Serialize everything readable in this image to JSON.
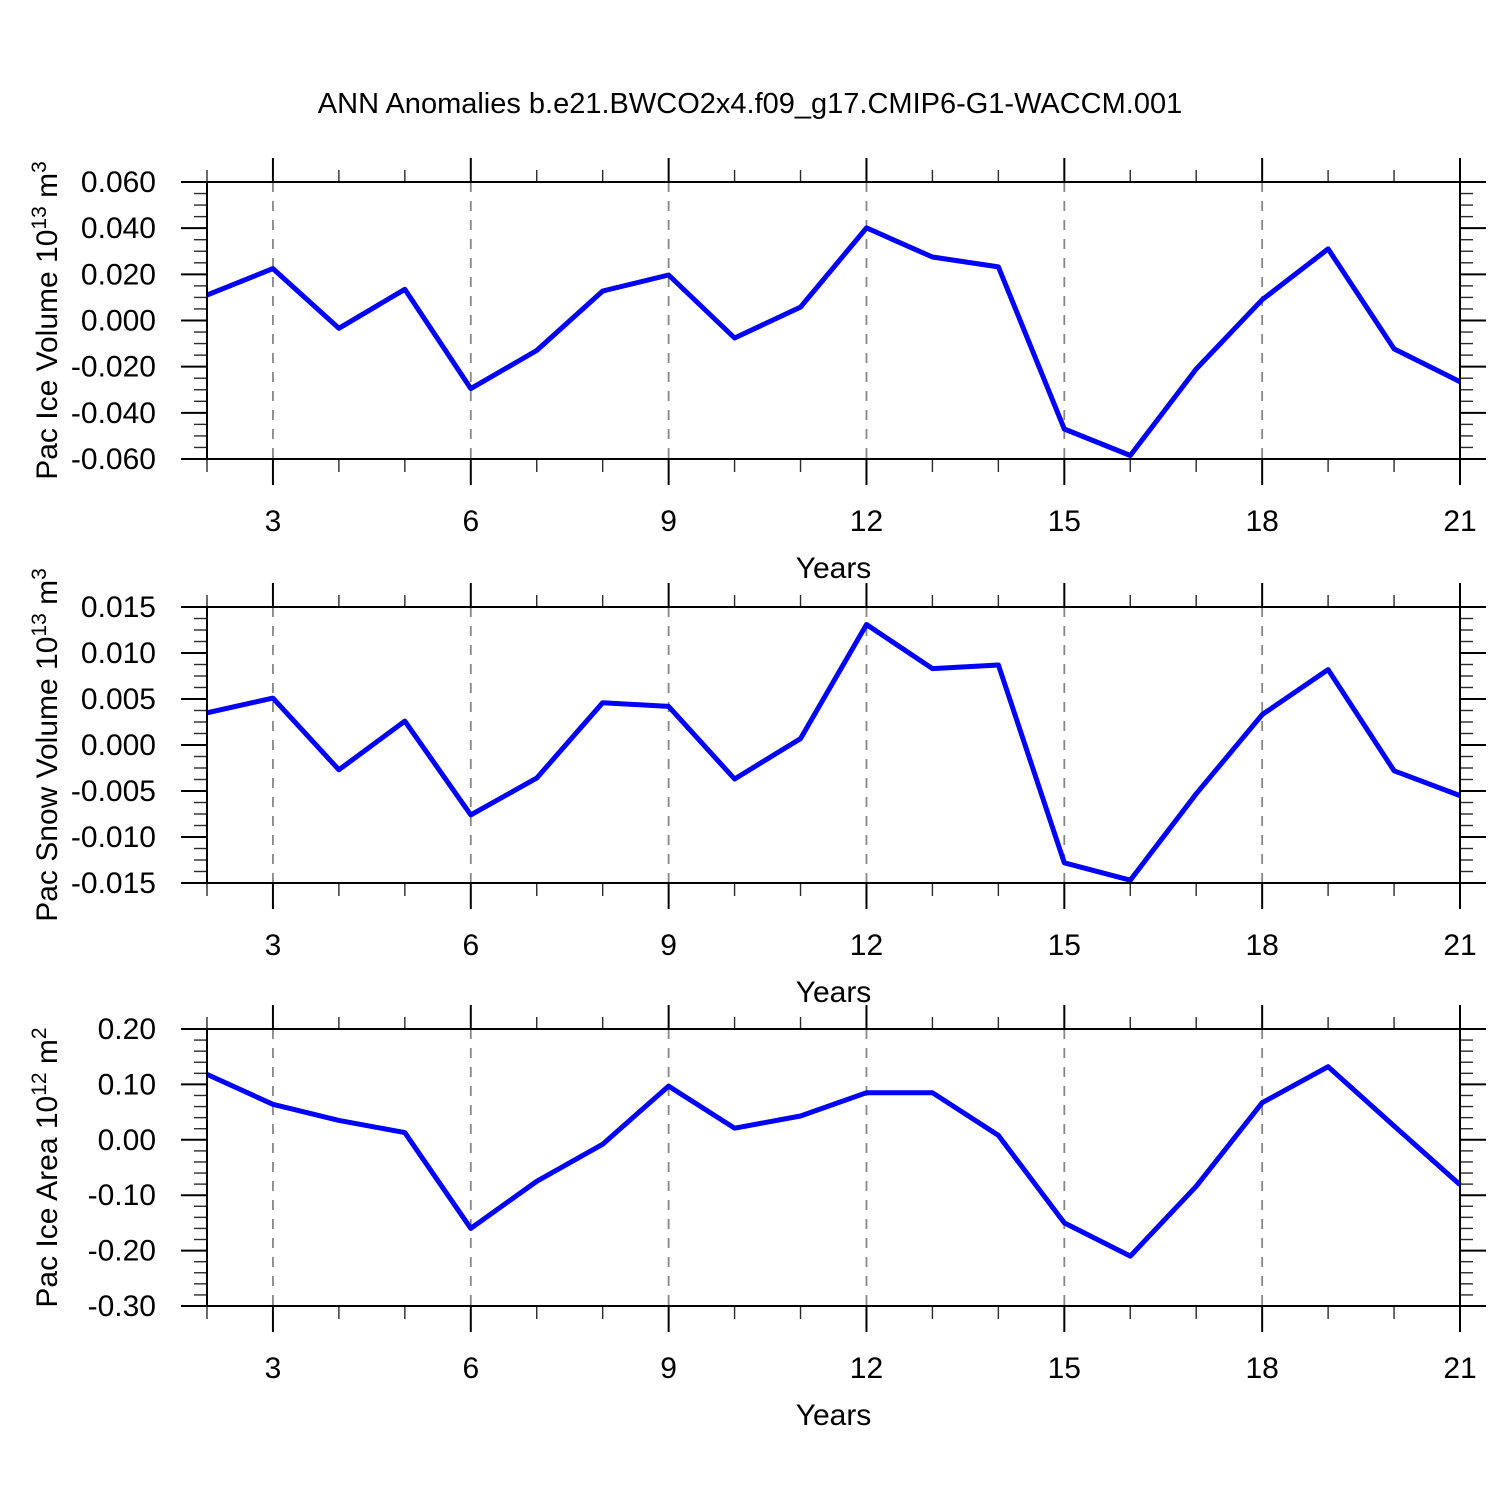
{
  "title": "ANN Anomalies b.e21.BWCO2x4.f09_g17.CMIP6-G1-WACCM.001",
  "line_color": "#0000ff",
  "chart_data": [
    {
      "type": "line",
      "panel": "top",
      "ylabel": "Pac Ice Volume 10^13 m^3",
      "ylabel_rich": [
        {
          "t": "Pac Ice Volume 10"
        },
        {
          "t": "13",
          "sup": true
        },
        {
          "t": " m"
        },
        {
          "t": "3",
          "sup": true
        }
      ],
      "xlabel": "Years",
      "x": [
        2,
        3,
        4,
        5,
        6,
        7,
        8,
        9,
        10,
        11,
        12,
        13,
        14,
        15,
        16,
        17,
        18,
        19,
        20,
        21
      ],
      "values": [
        0.011,
        0.0225,
        -0.0034,
        0.0135,
        -0.0295,
        -0.013,
        0.0128,
        0.0197,
        -0.0076,
        0.0058,
        0.0401,
        0.0275,
        0.0232,
        -0.047,
        -0.0585,
        -0.021,
        0.009,
        0.031,
        -0.0123,
        -0.0265
      ],
      "xlim": [
        2,
        21
      ],
      "ylim": [
        -0.06,
        0.06
      ],
      "ytick_values": [
        0.06,
        0.04,
        0.02,
        0.0,
        -0.02,
        -0.04,
        -0.06
      ],
      "ytick_labels": [
        "0.060",
        "0.040",
        "0.020",
        "0.000",
        "-0.020",
        "-0.040",
        "-0.060"
      ],
      "y_minor_step": 0.005,
      "xtick_values": [
        3,
        6,
        9,
        12,
        15,
        18,
        21
      ],
      "xtick_labels": [
        "3",
        "6",
        "9",
        "12",
        "15",
        "18",
        "21"
      ],
      "x_minor_step": 1,
      "grid_x": [
        3,
        6,
        9,
        12,
        15,
        18
      ],
      "grid": "vertical-dashed",
      "legend": "none"
    },
    {
      "type": "line",
      "panel": "middle",
      "ylabel": "Pac Snow Volume 10^13 m^3",
      "ylabel_rich": [
        {
          "t": "Pac Snow Volume 10"
        },
        {
          "t": "13",
          "sup": true
        },
        {
          "t": " m"
        },
        {
          "t": "3",
          "sup": true
        }
      ],
      "xlabel": "Years",
      "x": [
        2,
        3,
        4,
        5,
        6,
        7,
        8,
        9,
        10,
        11,
        12,
        13,
        14,
        15,
        16,
        17,
        18,
        19,
        20,
        21
      ],
      "values": [
        0.0035,
        0.0051,
        -0.0027,
        0.0026,
        -0.0076,
        -0.0036,
        0.0046,
        0.0042,
        -0.0037,
        0.0007,
        0.0131,
        0.0083,
        0.0087,
        -0.0128,
        -0.0147,
        -0.0053,
        0.0033,
        0.0082,
        -0.0028,
        -0.0055
      ],
      "xlim": [
        2,
        21
      ],
      "ylim": [
        -0.015,
        0.015
      ],
      "ytick_values": [
        0.015,
        0.01,
        0.005,
        0.0,
        -0.005,
        -0.01,
        -0.015
      ],
      "ytick_labels": [
        "0.015",
        "0.010",
        "0.005",
        "0.000",
        "-0.005",
        "-0.010",
        "-0.015"
      ],
      "y_minor_step": 0.00125,
      "xtick_values": [
        3,
        6,
        9,
        12,
        15,
        18,
        21
      ],
      "xtick_labels": [
        "3",
        "6",
        "9",
        "12",
        "15",
        "18",
        "21"
      ],
      "x_minor_step": 1,
      "grid_x": [
        3,
        6,
        9,
        12,
        15,
        18
      ],
      "grid": "vertical-dashed",
      "legend": "none"
    },
    {
      "type": "line",
      "panel": "bottom",
      "ylabel": "Pac Ice Area 10^12 m^2",
      "ylabel_rich": [
        {
          "t": "Pac Ice Area 10"
        },
        {
          "t": "12",
          "sup": true
        },
        {
          "t": " m"
        },
        {
          "t": "2",
          "sup": true
        }
      ],
      "xlabel": "Years",
      "x": [
        2,
        3,
        4,
        5,
        6,
        7,
        8,
        9,
        10,
        11,
        12,
        13,
        14,
        15,
        16,
        17,
        18,
        19,
        20,
        21
      ],
      "values": [
        0.118,
        0.064,
        0.035,
        0.013,
        -0.16,
        -0.075,
        -0.008,
        0.097,
        0.021,
        0.043,
        0.085,
        0.085,
        0.008,
        -0.15,
        -0.21,
        -0.084,
        0.067,
        0.132,
        0.025,
        -0.081
      ],
      "xlim": [
        2,
        21
      ],
      "ylim": [
        -0.3,
        0.2
      ],
      "ytick_values": [
        0.2,
        0.1,
        0.0,
        -0.1,
        -0.2,
        -0.3
      ],
      "ytick_labels": [
        "0.20",
        "0.10",
        "0.00",
        "-0.10",
        "-0.20",
        "-0.30"
      ],
      "y_minor_step": 0.02,
      "xtick_values": [
        3,
        6,
        9,
        12,
        15,
        18,
        21
      ],
      "xtick_labels": [
        "3",
        "6",
        "9",
        "12",
        "15",
        "18",
        "21"
      ],
      "x_minor_step": 1,
      "grid_x": [
        3,
        6,
        9,
        12,
        15,
        18
      ],
      "grid": "vertical-dashed",
      "legend": "none"
    }
  ]
}
